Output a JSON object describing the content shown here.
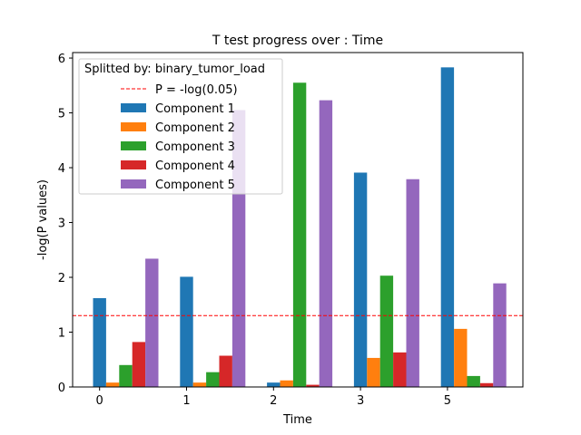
{
  "chart_data": {
    "type": "bar",
    "title": "T test progress over : Time",
    "xlabel": "Time",
    "ylabel": "-log(P values)",
    "categories": [
      "0",
      "1",
      "2",
      "3",
      "5"
    ],
    "ylim": [
      0,
      6.1
    ],
    "yticks": [
      0,
      1,
      2,
      3,
      4,
      5,
      6
    ],
    "threshold": {
      "label": "P = -log(0.05)",
      "value": 1.301,
      "color": "#ff0000"
    },
    "legend": {
      "title": "Splitted by: binary_tumor_load",
      "position": "top-left"
    },
    "grid": false,
    "series": [
      {
        "name": "Component 1",
        "color": "#1f77b4",
        "values": [
          1.62,
          2.01,
          0.08,
          3.91,
          5.83
        ]
      },
      {
        "name": "Component 2",
        "color": "#ff7f0e",
        "values": [
          0.08,
          0.08,
          0.12,
          0.53,
          1.06
        ]
      },
      {
        "name": "Component 3",
        "color": "#2ca02c",
        "values": [
          0.4,
          0.27,
          5.55,
          2.03,
          0.2
        ]
      },
      {
        "name": "Component 4",
        "color": "#d62728",
        "values": [
          0.82,
          0.57,
          0.04,
          0.63,
          0.07
        ]
      },
      {
        "name": "Component 5",
        "color": "#9467bd",
        "values": [
          2.34,
          5.05,
          5.23,
          3.79,
          1.89
        ]
      }
    ]
  }
}
